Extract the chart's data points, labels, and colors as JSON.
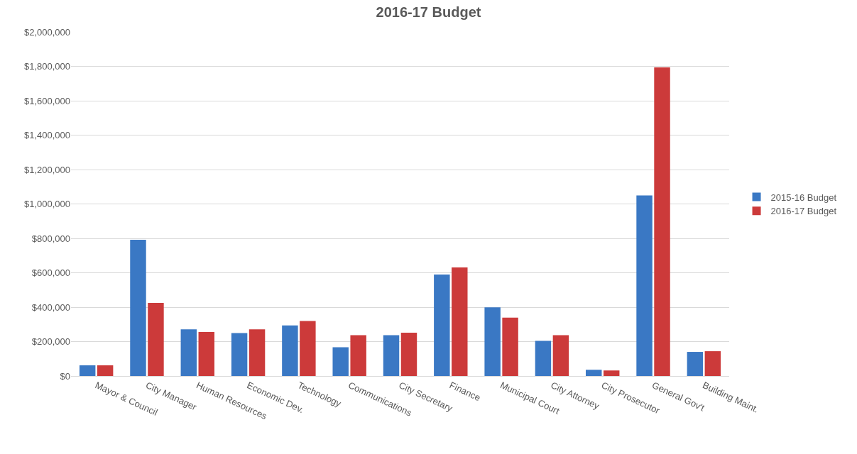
{
  "chart_data": {
    "type": "bar",
    "title": "2016-17 Budget",
    "categories": [
      "Mayor & Council",
      "City Manager",
      "Human Resources",
      "Economic Dev.",
      "Technology",
      "Communications",
      "City Secretary",
      "Finance",
      "Municipal Court",
      "City Attorney",
      "City Prosecutor",
      "General Gov't",
      "Building Maint."
    ],
    "series": [
      {
        "name": "2015-16 Budget",
        "color": "#3a78c4",
        "values": [
          62000,
          792000,
          271000,
          249000,
          294000,
          167000,
          237000,
          590000,
          399000,
          204000,
          36000,
          1049000,
          140000
        ]
      },
      {
        "name": "2016-17 Budget",
        "color": "#cc3a3a",
        "values": [
          62000,
          425000,
          256000,
          271000,
          320000,
          237000,
          252000,
          631000,
          339000,
          237000,
          32000,
          1794000,
          144000
        ]
      }
    ],
    "ylim": [
      0,
      2000000
    ],
    "yticks": [
      {
        "value": 0,
        "label": "$0"
      },
      {
        "value": 200000,
        "label": "$200,000"
      },
      {
        "value": 400000,
        "label": "$400,000"
      },
      {
        "value": 600000,
        "label": "$600,000"
      },
      {
        "value": 800000,
        "label": "$800,000"
      },
      {
        "value": 1000000,
        "label": "$1,000,000"
      },
      {
        "value": 1200000,
        "label": "$1,200,000"
      },
      {
        "value": 1400000,
        "label": "$1,400,000"
      },
      {
        "value": 1600000,
        "label": "$1,600,000"
      },
      {
        "value": 1800000,
        "label": "$1,800,000"
      },
      {
        "value": 2000000,
        "label": "$2,000,000"
      }
    ],
    "grid": "y",
    "legend": "right"
  }
}
